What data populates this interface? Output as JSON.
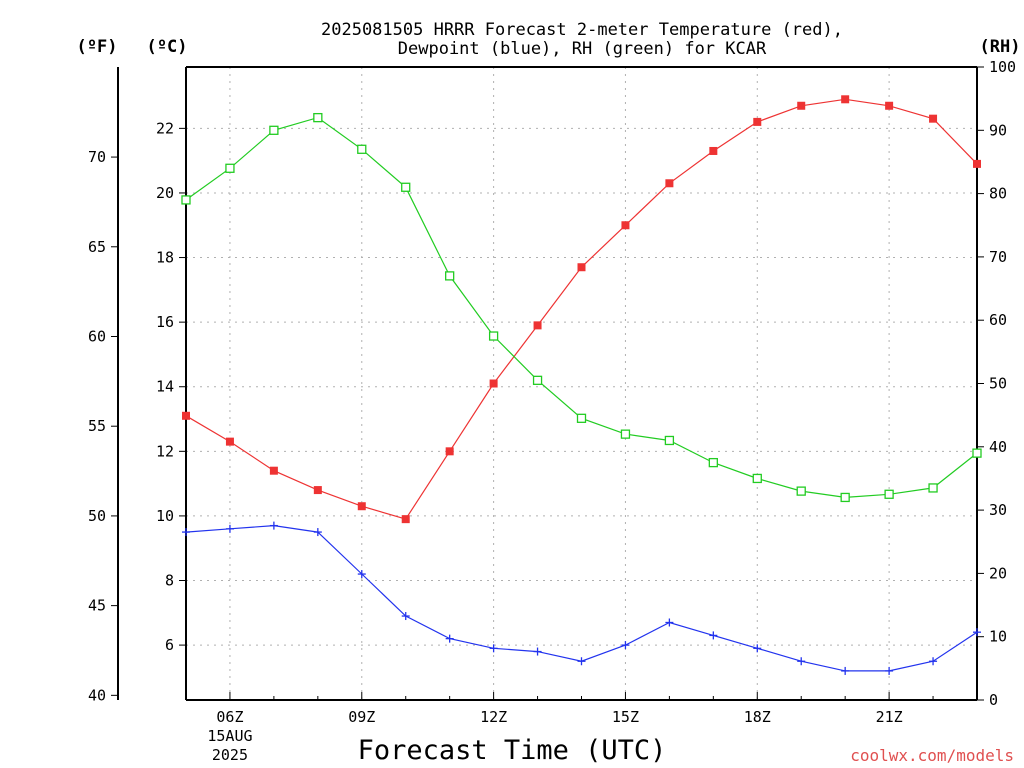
{
  "chart_data": {
    "type": "line",
    "title_line1": "2025081505 HRRR Forecast 2-meter Temperature (red),",
    "title_line2": "Dewpoint (blue), RH (green) for KCAR",
    "xlabel": "Forecast Time (UTC)",
    "credit": "coolwx.com/models",
    "left_unit_f": "(ºF)",
    "left_unit_c": "(ºC)",
    "right_unit": "(RH)",
    "x_hours": [
      5,
      6,
      7,
      8,
      9,
      10,
      11,
      12,
      13,
      14,
      15,
      16,
      17,
      18,
      19,
      20,
      21,
      22,
      23
    ],
    "x_ticks": [
      {
        "hour": 6,
        "label": "06Z",
        "sub1": "15AUG",
        "sub2": "2025"
      },
      {
        "hour": 9,
        "label": "09Z"
      },
      {
        "hour": 12,
        "label": "12Z"
      },
      {
        "hour": 15,
        "label": "15Z"
      },
      {
        "hour": 18,
        "label": "18Z"
      },
      {
        "hour": 21,
        "label": "21Z"
      }
    ],
    "celsius_axis": {
      "min": 4.3,
      "max": 23.9,
      "ticks": [
        6,
        8,
        10,
        12,
        14,
        16,
        18,
        20,
        22
      ]
    },
    "fahrenheit_axis": {
      "ticks": [
        40,
        45,
        50,
        55,
        60,
        65,
        70
      ]
    },
    "rh_axis": {
      "min": 0,
      "max": 100,
      "ticks": [
        0,
        10,
        20,
        30,
        40,
        50,
        60,
        70,
        80,
        90,
        100
      ]
    },
    "grid": true,
    "series": [
      {
        "name": "Temperature",
        "color": "#ee3333",
        "marker": "filled-square",
        "axis": "celsius",
        "values": [
          13.1,
          12.3,
          11.4,
          10.8,
          10.3,
          9.9,
          12.0,
          14.1,
          15.9,
          17.7,
          19.0,
          20.3,
          21.3,
          22.2,
          22.7,
          22.9,
          22.7,
          22.3,
          20.9
        ]
      },
      {
        "name": "Dewpoint",
        "color": "#2233ee",
        "marker": "plus",
        "axis": "celsius",
        "values": [
          9.5,
          9.6,
          9.7,
          9.5,
          8.2,
          6.9,
          6.2,
          5.9,
          5.8,
          5.5,
          6.0,
          6.7,
          6.3,
          5.9,
          5.5,
          5.2,
          5.2,
          5.5,
          6.4
        ]
      },
      {
        "name": "RH",
        "color": "#22cc22",
        "marker": "open-square",
        "axis": "rh",
        "values": [
          79,
          84,
          90,
          92,
          87,
          81,
          67,
          57.5,
          50.5,
          44.5,
          42,
          41,
          37.5,
          35,
          33,
          32,
          32.5,
          33.5,
          39
        ]
      }
    ]
  }
}
